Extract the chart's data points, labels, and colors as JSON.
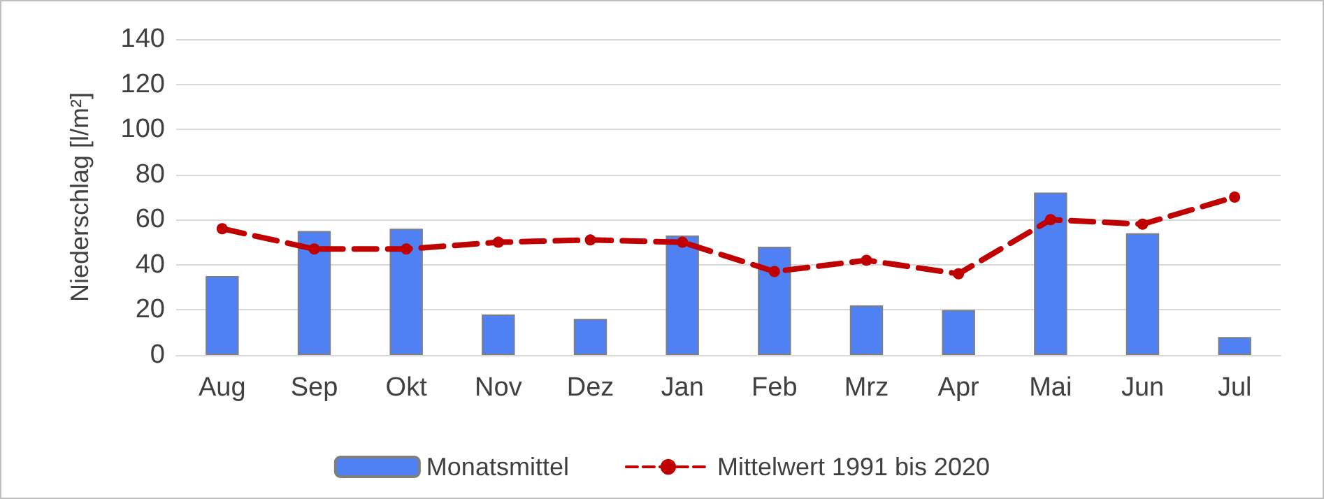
{
  "chart_data": {
    "type": "bar",
    "ylabel": "Niederschlag [l/m²]",
    "categories": [
      "Aug",
      "Sep",
      "Okt",
      "Nov",
      "Dez",
      "Jan",
      "Feb",
      "Mrz",
      "Apr",
      "Mai",
      "Jun",
      "Jul"
    ],
    "series": [
      {
        "name": "Monatsmittel",
        "color": "#4f81f5",
        "values": [
          35,
          55,
          56,
          18,
          16,
          53,
          48,
          22,
          20,
          72,
          54,
          8
        ]
      },
      {
        "name": "Mittelwert 1991 bis 2020",
        "type": "line",
        "color": "#c00000",
        "marker": "circle",
        "line_style": "dashed",
        "values": [
          56,
          47,
          47,
          50,
          51,
          50,
          37,
          42,
          36,
          60,
          58,
          70
        ]
      }
    ],
    "ylim": [
      0,
      140
    ],
    "yticks": [
      0,
      20,
      40,
      60,
      80,
      100,
      120,
      140
    ],
    "grid": "y",
    "legend": "bottom"
  }
}
